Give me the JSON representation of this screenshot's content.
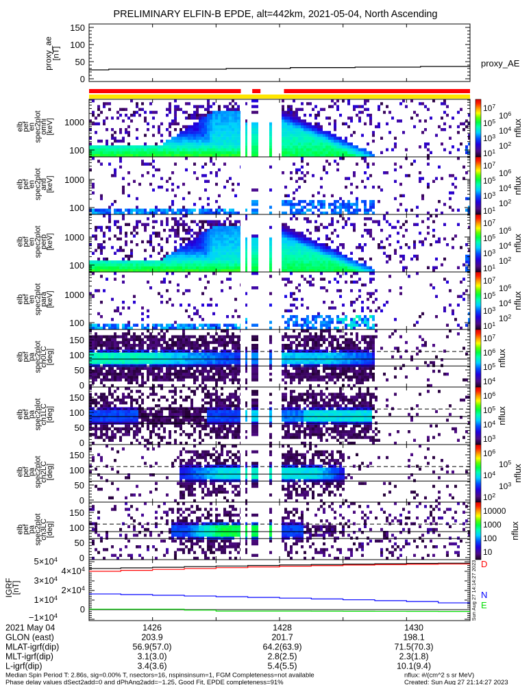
{
  "title": "PRELIMINARY ELFIN-B EPDE, alt=442km, 2021-05-04, North Ascending",
  "proxy": {
    "ylabel": [
      "proxy_ae",
      "[nT]"
    ],
    "yticks": [
      "150",
      "100",
      "50",
      "0"
    ],
    "legend": "proxy_AE"
  },
  "spectrograms": [
    {
      "ylabel": [
        "elb",
        "pef",
        "en",
        "spec2plot",
        "omni",
        "[keV]"
      ],
      "yticks": [
        "1000",
        "100"
      ],
      "cbar_label": "nflux",
      "cbar_ticks": [
        {
          "base": "10",
          "exp": "7"
        },
        {
          "base": "10",
          "exp": "6"
        },
        {
          "base": "10",
          "exp": "5"
        },
        {
          "base": "10",
          "exp": "4"
        },
        {
          "base": "10",
          "exp": "3"
        },
        {
          "base": "10",
          "exp": "2"
        },
        {
          "base": "10",
          "exp": "1"
        }
      ]
    },
    {
      "ylabel": [
        "elb",
        "pef",
        "en",
        "spec2plot",
        "anti",
        "[keV]"
      ],
      "yticks": [
        "1000",
        "100"
      ],
      "cbar_label": "nflux",
      "cbar_ticks": [
        {
          "base": "10",
          "exp": "7"
        },
        {
          "base": "10",
          "exp": "6"
        },
        {
          "base": "10",
          "exp": "5"
        },
        {
          "base": "10",
          "exp": "4"
        },
        {
          "base": "10",
          "exp": "3"
        },
        {
          "base": "10",
          "exp": "2"
        },
        {
          "base": "10",
          "exp": "1"
        }
      ]
    },
    {
      "ylabel": [
        "elb",
        "pef",
        "en",
        "spec2plot",
        "perp",
        "[keV]"
      ],
      "yticks": [
        "1000",
        "100"
      ],
      "cbar_label": "nflux",
      "cbar_ticks": [
        {
          "base": "10",
          "exp": "7"
        },
        {
          "base": "10",
          "exp": "6"
        },
        {
          "base": "10",
          "exp": "5"
        },
        {
          "base": "10",
          "exp": "4"
        },
        {
          "base": "10",
          "exp": "3"
        },
        {
          "base": "10",
          "exp": "2"
        },
        {
          "base": "10",
          "exp": "1"
        }
      ]
    },
    {
      "ylabel": [
        "elb",
        "pef",
        "en",
        "spec2plot",
        "para",
        "[keV]"
      ],
      "yticks": [
        "1000",
        "100"
      ],
      "cbar_label": "nflux",
      "cbar_ticks": [
        {
          "base": "10",
          "exp": "7"
        },
        {
          "base": "10",
          "exp": "6"
        },
        {
          "base": "10",
          "exp": "5"
        },
        {
          "base": "10",
          "exp": "4"
        },
        {
          "base": "10",
          "exp": "3"
        },
        {
          "base": "10",
          "exp": "2"
        },
        {
          "base": "10",
          "exp": "1"
        }
      ]
    },
    {
      "ylabel": [
        "elb",
        "pef",
        "pa",
        "spec2plot",
        "ch0LC",
        "[deg]"
      ],
      "yticks": [
        "150",
        "100",
        "50",
        "0"
      ],
      "cbar_label": "nflux",
      "cbar_ticks": [
        {
          "base": "10",
          "exp": "7"
        },
        {
          "base": "10",
          "exp": "6"
        },
        {
          "base": "10",
          "exp": "5"
        },
        {
          "base": "10",
          "exp": "4"
        }
      ]
    },
    {
      "ylabel": [
        "elb",
        "pef",
        "pa",
        "spec2plot",
        "ch1LC",
        "[deg]"
      ],
      "yticks": [
        "150",
        "100",
        "50",
        "0"
      ],
      "cbar_label": "nflux",
      "cbar_ticks": [
        {
          "base": "10",
          "exp": "6"
        },
        {
          "base": "10",
          "exp": "5"
        },
        {
          "base": "10",
          "exp": "4"
        },
        {
          "base": "10",
          "exp": "3"
        }
      ]
    },
    {
      "ylabel": [
        "elb",
        "pef",
        "pa",
        "spec2plot",
        "ch2LC",
        "[deg]"
      ],
      "yticks": [
        "150",
        "100",
        "50",
        "0"
      ],
      "cbar_label": "nflux",
      "cbar_ticks": [
        {
          "base": "10",
          "exp": "6"
        },
        {
          "base": "10",
          "exp": "5"
        },
        {
          "base": "10",
          "exp": "4"
        },
        {
          "base": "10",
          "exp": "3"
        },
        {
          "base": "10",
          "exp": "2"
        }
      ]
    },
    {
      "ylabel": [
        "elb",
        "pef",
        "pa",
        "spec2plot",
        "ch3LC",
        "[deg]"
      ],
      "yticks": [
        "150",
        "100",
        "50",
        "0"
      ],
      "cbar_label": "nflux",
      "cbar_ticks": [
        {
          "base": "10000",
          "exp": ""
        },
        {
          "base": "1000",
          "exp": ""
        },
        {
          "base": "100",
          "exp": ""
        },
        {
          "base": "10",
          "exp": ""
        }
      ]
    }
  ],
  "igrf": {
    "ylabel": [
      "IGRF",
      "[nT]"
    ],
    "yticks": [
      {
        "base": "5×10",
        "exp": "4"
      },
      {
        "base": "4×10",
        "exp": "4"
      },
      {
        "base": "3×10",
        "exp": "4"
      },
      {
        "base": "2×10",
        "exp": "4"
      },
      {
        "base": "1×10",
        "exp": "4"
      },
      {
        "base": "0",
        "exp": ""
      },
      {
        "base": "−1×10",
        "exp": "4"
      }
    ],
    "component_labels": {
      "D": "D",
      "N": "N",
      "E": "E"
    },
    "stamp": "Sun Aug 27 14:14:27 2023"
  },
  "ephemeris": {
    "rows": [
      {
        "label": "2021 May 04",
        "values": [
          "1426",
          "1428",
          "1430"
        ]
      },
      {
        "label": "GLON (east)",
        "values": [
          "203.9",
          "201.7",
          "198.1"
        ]
      },
      {
        "label": "MLAT-igrf(dip)",
        "values": [
          "56.9(57.0)",
          "64.2(63.9)",
          "71.5(70.3)"
        ]
      },
      {
        "label": "MLT-igrf(dip)",
        "values": [
          "3.1(3.0)",
          "2.8(2.5)",
          "2.3(1.8)"
        ]
      },
      {
        "label": "L-igrf(dip)",
        "values": [
          "3.4(3.6)",
          "5.4(5.5)",
          "10.1(9.4)"
        ]
      }
    ]
  },
  "footer": {
    "line1": "Median Spin Period T: 2.86s, sig=0.00% T, nsectors=16, nspinsinsum=1, FGM Completeness=not available",
    "line2": "Phase delay values dSect2add=0 and dPhAng2add=−1.25, Good Fit, EPDE completeness=91%",
    "units": "nflux: #/(cm^2 s sr MeV)",
    "created": "Created: Sun Aug 27 21:14:27 2023"
  },
  "colors": {
    "red_bar": "#ff0000",
    "yellow_bar": "#ffe600",
    "igrf_total": "#000000",
    "igrf_D": "#ff0000",
    "igrf_N": "#0000ff",
    "igrf_E": "#00dd00"
  },
  "chart_data": {
    "type": "multi-panel time series / spectrogram",
    "x_unit": "minutes after 14:00 UT",
    "xlim": [
      25.0,
      31.0
    ],
    "x_major_ticks": [
      26,
      28,
      30
    ],
    "x_minor_ticks": [
      27,
      29
    ],
    "proxy_ae": {
      "type": "line",
      "ylim": [
        0,
        150
      ],
      "x": [
        25.0,
        25.31,
        27.16,
        28.17,
        29.19,
        30.22,
        31.0
      ],
      "y": [
        26,
        28,
        30,
        32.6,
        34,
        36,
        36
      ]
    },
    "status_bars": {
      "red": [
        [
          25.0,
          27.39
        ],
        [
          27.57,
          27.7
        ],
        [
          28.07,
          31.0
        ]
      ],
      "yellow": [
        [
          25.0,
          31.0
        ]
      ]
    },
    "data_gaps": [
      [
        27.39,
        27.46
      ],
      [
        27.48,
        27.56
      ],
      [
        27.66,
        27.84
      ],
      [
        27.87,
        28.03
      ]
    ],
    "energy_spectrograms": {
      "type": "heatmap",
      "ylim_keV": [
        57,
        6300
      ],
      "yscale": "log",
      "cbar_log10_range": [
        1,
        7
      ]
    },
    "pa_spectrograms": {
      "type": "heatmap",
      "ylim_deg": [
        0,
        180
      ],
      "reference_lines_deg": {
        "dashed": 111,
        "solid": [
          86,
          63
        ]
      },
      "cbar_log10_ranges": [
        [
          3.7,
          7.2
        ],
        [
          2.8,
          6.4
        ],
        [
          1.9,
          6.1
        ],
        [
          1,
          4.1
        ]
      ]
    },
    "igrf_field": {
      "type": "line",
      "ylim": [
        -11000,
        53000
      ],
      "x": [
        25,
        26,
        27,
        28,
        29,
        30,
        31
      ],
      "series": [
        {
          "name": "total",
          "values": [
            42900,
            44200,
            45500,
            46600,
            47500,
            48200,
            48600
          ]
        },
        {
          "name": "D",
          "values": [
            40000,
            42000,
            43800,
            45300,
            46500,
            47400,
            47900
          ]
        },
        {
          "name": "N",
          "values": [
            16400,
            15000,
            13500,
            12000,
            10300,
            8500,
            5700
          ]
        },
        {
          "name": "E",
          "values": [
            500,
            500,
            -1500,
            -1500,
            -1700,
            -1800,
            -2000
          ]
        }
      ]
    }
  }
}
